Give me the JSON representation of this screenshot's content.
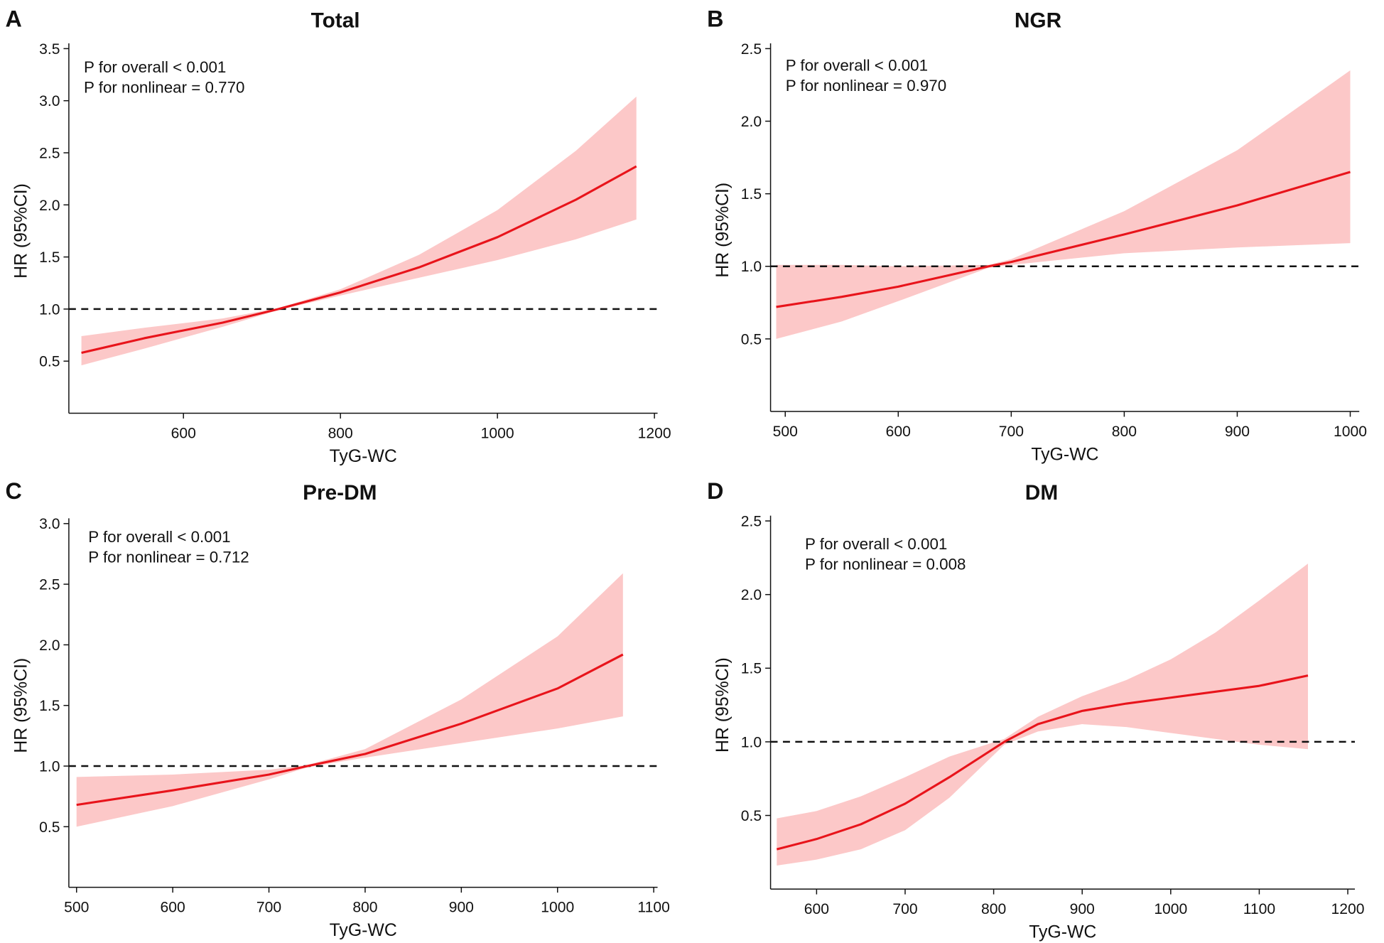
{
  "chart_data": [
    {
      "type": "line",
      "panel": "A",
      "title": "Total",
      "annotations": [
        "P for overall < 0.001",
        "P for nonlinear = 0.770"
      ],
      "x_label": "TyG-WC",
      "y_label": "HR (95%CI)",
      "x": [
        470,
        550,
        650,
        721,
        800,
        900,
        1000,
        1100,
        1177
      ],
      "values": [
        0.58,
        0.72,
        0.87,
        1.0,
        1.16,
        1.4,
        1.69,
        2.05,
        2.37
      ],
      "lower": [
        0.46,
        0.62,
        0.83,
        0.99,
        1.13,
        1.3,
        1.47,
        1.67,
        1.86
      ],
      "upper": [
        0.74,
        0.82,
        0.91,
        1.01,
        1.19,
        1.52,
        1.95,
        2.52,
        3.04
      ],
      "color": "#e8141b",
      "band_color": "#fcc8c8",
      "reference_line": 1,
      "xlim": [
        454,
        1204
      ],
      "xticks": [
        600,
        800,
        1000,
        1200
      ],
      "ylim": [
        0,
        3.5
      ],
      "yticks": [
        {
          "value": 0.5,
          "label": "0.5"
        },
        {
          "value": 1,
          "label": "1.0"
        },
        {
          "value": 1.5,
          "label": "1.5"
        },
        {
          "value": 2,
          "label": "2.0"
        },
        {
          "value": 2.5,
          "label": "2.5"
        },
        {
          "value": 3,
          "label": "3.0"
        },
        {
          "value": 3.5,
          "label": "3.5"
        }
      ]
    },
    {
      "type": "line",
      "panel": "B",
      "title": "NGR",
      "annotations": [
        "P for overall < 0.001",
        "P for nonlinear = 0.970"
      ],
      "x_label": "TyG-WC",
      "y_label": "HR (95%CI)",
      "x": [
        492,
        550,
        600,
        680,
        700,
        800,
        900,
        1000
      ],
      "values": [
        0.72,
        0.79,
        0.86,
        1.0,
        1.03,
        1.22,
        1.42,
        1.65
      ],
      "lower": [
        0.5,
        0.62,
        0.76,
        0.99,
        1.01,
        1.09,
        1.13,
        1.16
      ],
      "upper": [
        1.01,
        1.01,
        1.0,
        1.01,
        1.05,
        1.38,
        1.8,
        2.35
      ],
      "color": "#e8141b",
      "band_color": "#fcc8c8",
      "reference_line": 1,
      "xlim": [
        487,
        1008
      ],
      "xticks": [
        500,
        600,
        700,
        800,
        900,
        1000
      ],
      "ylim": [
        0,
        2.5
      ],
      "yticks": [
        {
          "value": 0.5,
          "label": "0.5"
        },
        {
          "value": 1,
          "label": "1.0"
        },
        {
          "value": 1.5,
          "label": "1.5"
        },
        {
          "value": 2,
          "label": "2.0"
        },
        {
          "value": 2.5,
          "label": "2.5"
        }
      ]
    },
    {
      "type": "line",
      "panel": "C",
      "title": "Pre-DM",
      "annotations": [
        "P for overall < 0.001",
        "P for nonlinear = 0.712"
      ],
      "x_label": "TyG-WC",
      "y_label": "HR (95%CI)",
      "x": [
        500,
        600,
        700,
        740,
        800,
        900,
        1000,
        1068
      ],
      "values": [
        0.68,
        0.8,
        0.93,
        1.0,
        1.1,
        1.35,
        1.64,
        1.92
      ],
      "lower": [
        0.5,
        0.67,
        0.89,
        0.99,
        1.07,
        1.19,
        1.31,
        1.41
      ],
      "upper": [
        0.91,
        0.93,
        0.97,
        1.01,
        1.14,
        1.55,
        2.07,
        2.59
      ],
      "color": "#e8141b",
      "band_color": "#fcc8c8",
      "reference_line": 1,
      "xlim": [
        492,
        1104
      ],
      "xticks": [
        500,
        600,
        700,
        800,
        900,
        1000,
        1100
      ],
      "ylim": [
        0,
        3
      ],
      "yticks": [
        {
          "value": 0.5,
          "label": "0.5"
        },
        {
          "value": 1,
          "label": "1.0"
        },
        {
          "value": 1.5,
          "label": "1.5"
        },
        {
          "value": 2,
          "label": "2.0"
        },
        {
          "value": 2.5,
          "label": "2.5"
        },
        {
          "value": 3,
          "label": "3.0"
        }
      ]
    },
    {
      "type": "line",
      "panel": "D",
      "title": "DM",
      "annotations": [
        "P for overall < 0.001",
        "P for nonlinear = 0.008"
      ],
      "x_label": "TyG-WC",
      "y_label": "HR (95%CI)",
      "x": [
        555,
        600,
        650,
        700,
        750,
        812,
        850,
        900,
        950,
        1000,
        1050,
        1100,
        1155
      ],
      "values": [
        0.27,
        0.34,
        0.44,
        0.58,
        0.76,
        1.0,
        1.12,
        1.21,
        1.26,
        1.3,
        1.34,
        1.38,
        1.45
      ],
      "lower": [
        0.16,
        0.2,
        0.27,
        0.4,
        0.62,
        0.98,
        1.07,
        1.12,
        1.1,
        1.06,
        1.02,
        0.98,
        0.95
      ],
      "upper": [
        0.48,
        0.53,
        0.63,
        0.76,
        0.9,
        1.02,
        1.17,
        1.31,
        1.42,
        1.56,
        1.74,
        1.96,
        2.21
      ],
      "color": "#e8141b",
      "band_color": "#fcc8c8",
      "reference_line": 1,
      "xlim": [
        548,
        1208
      ],
      "xticks": [
        600,
        700,
        800,
        900,
        1000,
        1100,
        1200
      ],
      "ylim": [
        0,
        2.5
      ],
      "yticks": [
        {
          "value": 0.5,
          "label": "0.5"
        },
        {
          "value": 1,
          "label": "1.0"
        },
        {
          "value": 1.5,
          "label": "1.5"
        },
        {
          "value": 2,
          "label": "2.0"
        },
        {
          "value": 2.5,
          "label": "2.5"
        }
      ]
    }
  ]
}
